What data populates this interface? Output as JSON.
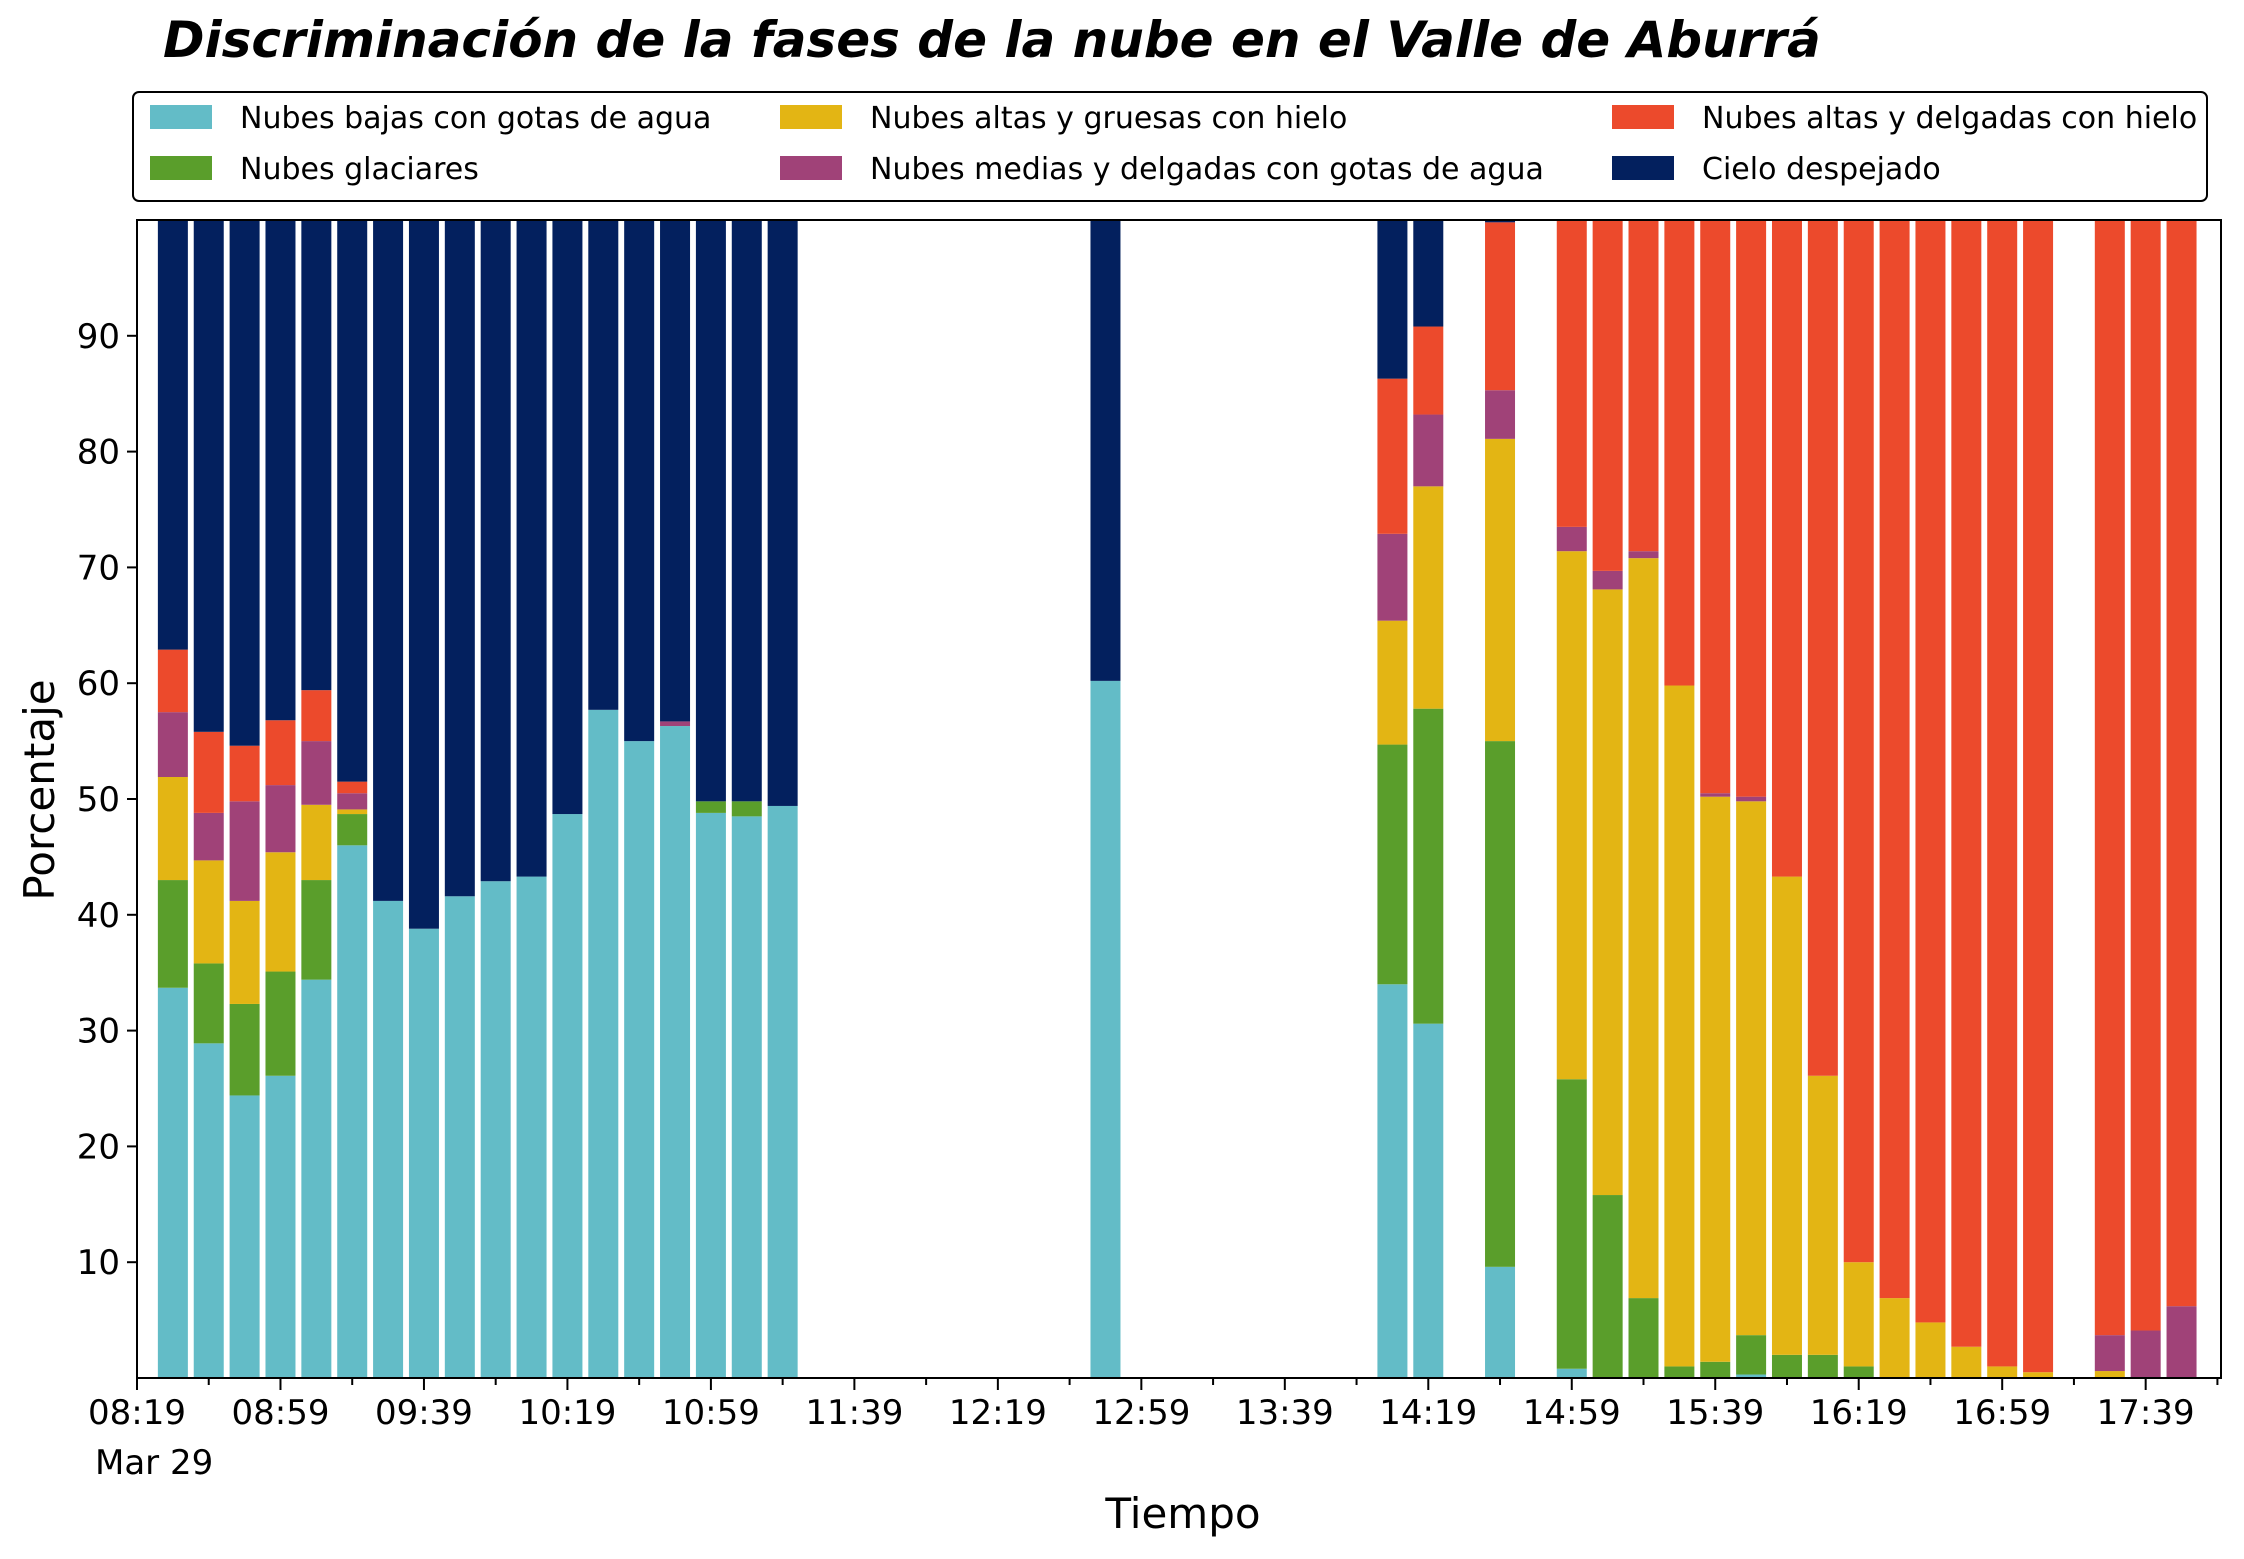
{
  "chart_data": {
    "type": "bar",
    "stacked": true,
    "title": "Discriminación de la fases de la nube en el Valle de Aburrá",
    "xlabel": "Tiempo",
    "ylabel": "Porcentaje",
    "x_date_label": "Mar 29",
    "ylim": [
      0,
      100
    ],
    "y_ticks": [
      10,
      20,
      30,
      40,
      50,
      60,
      70,
      80,
      90
    ],
    "x_range": [
      "08:19",
      "18:00"
    ],
    "x_tick_labels": [
      "08:19",
      "08:59",
      "09:39",
      "10:19",
      "10:59",
      "11:39",
      "12:19",
      "12:59",
      "13:39",
      "14:19",
      "14:59",
      "15:39",
      "16:19",
      "16:59",
      "17:39"
    ],
    "legend_placement": "top",
    "grid": false,
    "series": [
      {
        "name": "Nubes bajas con gotas de agua",
        "color": "#63bcc7"
      },
      {
        "name": "Nubes glaciares",
        "color": "#5a9e2b"
      },
      {
        "name": "Nubes altas y gruesas con hielo",
        "color": "#e3b514"
      },
      {
        "name": "Nubes medias y delgadas con gotas de agua",
        "color": "#a04278"
      },
      {
        "name": "Nubes altas y delgadas con hielo",
        "color": "#ec4a2c"
      },
      {
        "name": "Cielo despejado",
        "color": "#03205e"
      }
    ],
    "bars": [
      {
        "time": "08:29",
        "values": [
          33.7,
          9.3,
          8.9,
          5.6,
          5.4,
          37.1
        ]
      },
      {
        "time": "08:39",
        "values": [
          28.9,
          6.9,
          8.9,
          4.1,
          7.0,
          44.2
        ]
      },
      {
        "time": "08:49",
        "values": [
          24.4,
          7.9,
          8.9,
          8.6,
          4.8,
          45.4
        ]
      },
      {
        "time": "08:59",
        "values": [
          26.1,
          9.0,
          10.3,
          5.8,
          5.6,
          43.2
        ]
      },
      {
        "time": "09:09",
        "values": [
          34.4,
          8.6,
          6.5,
          5.5,
          4.4,
          40.6
        ]
      },
      {
        "time": "09:19",
        "values": [
          46.0,
          2.7,
          0.4,
          1.4,
          1.0,
          48.5
        ]
      },
      {
        "time": "09:29",
        "values": [
          41.2,
          0,
          0,
          0,
          0,
          58.8
        ]
      },
      {
        "time": "09:39",
        "values": [
          38.8,
          0,
          0,
          0,
          0,
          61.2
        ]
      },
      {
        "time": "09:49",
        "values": [
          41.6,
          0,
          0,
          0,
          0,
          58.4
        ]
      },
      {
        "time": "09:59",
        "values": [
          42.9,
          0,
          0,
          0,
          0,
          57.1
        ]
      },
      {
        "time": "10:09",
        "values": [
          43.3,
          0,
          0,
          0,
          0,
          56.7
        ]
      },
      {
        "time": "10:19",
        "values": [
          48.7,
          0,
          0,
          0,
          0,
          51.3
        ]
      },
      {
        "time": "10:29",
        "values": [
          57.7,
          0,
          0,
          0,
          0,
          42.3
        ]
      },
      {
        "time": "10:39",
        "values": [
          55.0,
          0,
          0,
          0,
          0,
          45.0
        ]
      },
      {
        "time": "10:49",
        "values": [
          56.3,
          0,
          0,
          0.4,
          0,
          43.3
        ]
      },
      {
        "time": "10:59",
        "values": [
          48.8,
          1.0,
          0,
          0,
          0,
          50.2
        ]
      },
      {
        "time": "11:09",
        "values": [
          48.5,
          1.3,
          0,
          0,
          0,
          50.2
        ]
      },
      {
        "time": "11:19",
        "values": [
          49.4,
          0,
          0,
          0,
          0,
          50.6
        ]
      },
      {
        "time": "12:49",
        "values": [
          60.2,
          0,
          0,
          0,
          0,
          39.8
        ]
      },
      {
        "time": "14:09",
        "values": [
          34.0,
          20.7,
          10.7,
          7.5,
          13.4,
          13.7
        ]
      },
      {
        "time": "14:19",
        "values": [
          30.6,
          27.2,
          19.2,
          6.2,
          7.6,
          9.2
        ]
      },
      {
        "time": "14:39",
        "values": [
          9.6,
          45.4,
          26.1,
          4.2,
          14.5,
          0.2
        ]
      },
      {
        "time": "14:59",
        "values": [
          0.8,
          25.0,
          45.6,
          2.1,
          26.5,
          0
        ]
      },
      {
        "time": "15:09",
        "values": [
          0,
          15.8,
          52.3,
          1.6,
          30.3,
          0
        ]
      },
      {
        "time": "15:19",
        "values": [
          0,
          6.9,
          63.9,
          0.6,
          28.6,
          0
        ]
      },
      {
        "time": "15:29",
        "values": [
          0,
          1.0,
          58.8,
          0,
          40.2,
          0
        ]
      },
      {
        "time": "15:39",
        "values": [
          0,
          1.4,
          48.8,
          0.3,
          49.5,
          0
        ]
      },
      {
        "time": "15:49",
        "values": [
          0.3,
          3.4,
          46.1,
          0.4,
          49.8,
          0
        ]
      },
      {
        "time": "15:59",
        "values": [
          0,
          2.0,
          41.3,
          0,
          56.7,
          0
        ]
      },
      {
        "time": "16:09",
        "values": [
          0,
          2.0,
          24.1,
          0,
          73.9,
          0
        ]
      },
      {
        "time": "16:19",
        "values": [
          0,
          1.0,
          9.0,
          0,
          90.0,
          0
        ]
      },
      {
        "time": "16:29",
        "values": [
          0,
          0,
          6.9,
          0,
          93.1,
          0
        ]
      },
      {
        "time": "16:39",
        "values": [
          0,
          0,
          4.8,
          0,
          95.2,
          0
        ]
      },
      {
        "time": "16:49",
        "values": [
          0,
          0,
          2.7,
          0,
          97.3,
          0
        ]
      },
      {
        "time": "16:59",
        "values": [
          0,
          0,
          1.0,
          0,
          99.0,
          0
        ]
      },
      {
        "time": "17:09",
        "values": [
          0,
          0,
          0.5,
          0,
          99.5,
          0
        ]
      },
      {
        "time": "17:29",
        "values": [
          0,
          0,
          0.6,
          3.1,
          96.3,
          0
        ]
      },
      {
        "time": "17:39",
        "values": [
          0,
          0,
          0,
          4.1,
          95.9,
          0
        ]
      },
      {
        "time": "17:49",
        "values": [
          0,
          0,
          0,
          6.2,
          93.8,
          0
        ]
      }
    ]
  }
}
